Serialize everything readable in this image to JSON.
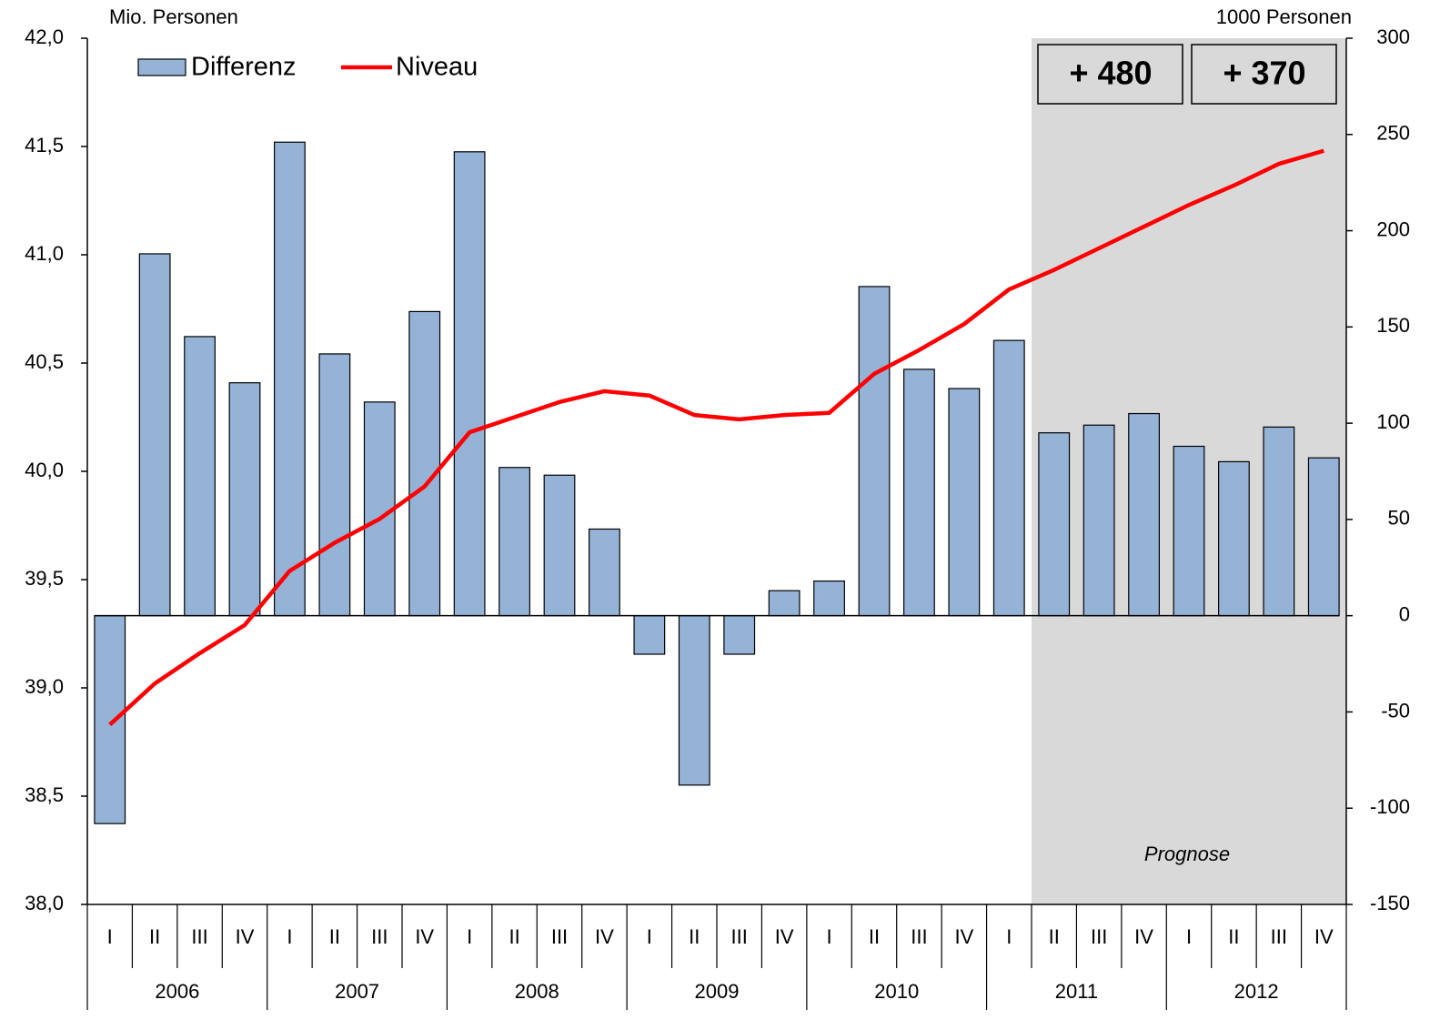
{
  "chart_data": {
    "type": "bar",
    "y_label": "Mio. Personen",
    "y2_label": "1000 Personen",
    "categories": [
      "I",
      "II",
      "III",
      "IV",
      "I",
      "II",
      "III",
      "IV",
      "I",
      "II",
      "III",
      "IV",
      "I",
      "II",
      "III",
      "IV",
      "I",
      "II",
      "III",
      "IV",
      "I",
      "II",
      "III",
      "IV",
      "I",
      "II",
      "III",
      "IV"
    ],
    "years": [
      "2006",
      "2007",
      "2008",
      "2009",
      "2010",
      "2011",
      "2012"
    ],
    "series": [
      {
        "name": "Differenz",
        "type": "bar",
        "axis": "y2",
        "color": "#95b3d7",
        "values": [
          -108,
          188,
          145,
          121,
          246,
          136,
          111,
          158,
          241,
          77,
          73,
          45,
          -20,
          -88,
          -20,
          13,
          18,
          171,
          128,
          118,
          143,
          95,
          99,
          105,
          88,
          80,
          98,
          82
        ]
      },
      {
        "name": "Niveau",
        "type": "line",
        "axis": "y",
        "color": "#ff0000",
        "values": [
          38.83,
          39.02,
          39.16,
          39.29,
          39.54,
          39.67,
          39.78,
          39.93,
          40.18,
          40.25,
          40.32,
          40.37,
          40.35,
          40.26,
          40.24,
          40.26,
          40.27,
          40.45,
          40.56,
          40.68,
          40.84,
          40.93,
          41.03,
          41.13,
          41.23,
          41.32,
          41.42,
          41.48
        ]
      }
    ],
    "ylim": [
      38.0,
      42.0
    ],
    "yticks": [
      {
        "value": 38.0,
        "label": "38,0"
      },
      {
        "value": 38.5,
        "label": "38,5"
      },
      {
        "value": 39.0,
        "label": "39,0"
      },
      {
        "value": 39.5,
        "label": "39,5"
      },
      {
        "value": 40.0,
        "label": "40,0"
      },
      {
        "value": 40.5,
        "label": "40,5"
      },
      {
        "value": 41.0,
        "label": "41,0"
      },
      {
        "value": 41.5,
        "label": "41,5"
      },
      {
        "value": 42.0,
        "label": "42,0"
      }
    ],
    "y2lim": [
      -150,
      300
    ],
    "y2ticks": [
      -150,
      -100,
      -50,
      0,
      50,
      100,
      150,
      200,
      250,
      300
    ],
    "annotations": [
      "+ 480",
      "+ 370"
    ],
    "shade_label": "Prognose"
  }
}
